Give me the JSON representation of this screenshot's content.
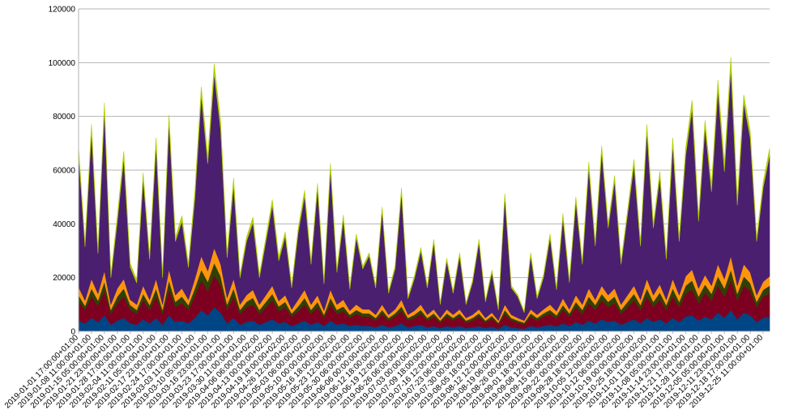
{
  "chart_data": {
    "type": "stacked-area",
    "categories": [
      "2019-01-01 17:00:00+01:00",
      null,
      "2019-01-08 11:00:00+01:00",
      null,
      "2019-01-15 05:00:00+01:00",
      null,
      "2019-01-21 23:00:00+01:00",
      null,
      "2019-01-28 17:00:00+01:00",
      null,
      "2019-02-04 11:00:00+01:00",
      null,
      "2019-02-11 05:00:00+01:00",
      null,
      "2019-02-17 23:00:00+01:00",
      null,
      "2019-02-24 17:00:00+01:00",
      null,
      "2019-03-03 11:00:00+01:00",
      null,
      "2019-03-10 05:00:00+01:00",
      null,
      "2019-03-16 23:00:00+01:00",
      null,
      "2019-03-23 17:00:00+01:00",
      null,
      "2019-03-30 11:00:00+01:00",
      null,
      "2019-04-06 06:00:00+02:00",
      null,
      "2019-04-13 00:00:00+02:00",
      null,
      "2019-04-19 18:00:00+02:00",
      null,
      "2019-04-26 12:00:00+02:00",
      null,
      "2019-05-03 06:00:00+02:00",
      null,
      "2019-05-10 00:00:00+02:00",
      null,
      "2019-05-16 18:00:00+02:00",
      null,
      "2019-05-23 12:00:00+02:00",
      null,
      "2019-05-30 06:00:00+02:00",
      null,
      "2019-06-06 00:00:00+02:00",
      null,
      "2019-06-12 18:00:00+02:00",
      null,
      "2019-06-19 12:00:00+02:00",
      null,
      "2019-06-26 06:00:00+02:00",
      null,
      "2019-07-03 00:00:00+02:00",
      null,
      "2019-07-09 18:00:00+02:00",
      null,
      "2019-07-16 12:00:00+02:00",
      null,
      "2019-07-23 06:00:00+02:00",
      null,
      "2019-07-30 00:00:00+02:00",
      null,
      "2019-08-05 18:00:00+02:00",
      null,
      "2019-08-12 12:00:00+02:00",
      null,
      "2019-08-19 06:00:00+02:00",
      null,
      "2019-08-26 00:00:00+02:00",
      null,
      "2019-09-01 18:00:00+02:00",
      null,
      "2019-09-08 12:00:00+02:00",
      null,
      "2019-09-15 06:00:00+02:00",
      null,
      "2019-09-22 00:00:00+02:00",
      null,
      "2019-09-28 18:00:00+02:00",
      null,
      "2019-10-05 12:00:00+02:00",
      null,
      "2019-10-12 06:00:00+02:00",
      null,
      "2019-10-19 00:00:00+02:00",
      null,
      "2019-10-25 18:00:00+02:00",
      null,
      "2019-11-01 11:00:00+01:00",
      null,
      "2019-11-08 05:00:00+01:00",
      null,
      "2019-11-14 23:00:00+01:00",
      null,
      "2019-11-21 17:00:00+01:00",
      null,
      "2019-11-28 11:00:00+01:00",
      null,
      "2019-12-05 05:00:00+01:00",
      null,
      "2019-12-11 23:00:00+01:00",
      null,
      "2019-12-18 17:00:00+01:00",
      null,
      "2019-12-25 11:00:00+01:00",
      null
    ],
    "series": [
      {
        "color": "#004586",
        "values": [
          4000,
          3000,
          5000,
          3500,
          6000,
          2500,
          4000,
          5000,
          3000,
          2500,
          4500,
          3000,
          5000,
          2500,
          6000,
          3500,
          4000,
          3000,
          5000,
          8000,
          6000,
          9000,
          7000,
          3000,
          5000,
          2500,
          3500,
          4000,
          2500,
          3500,
          4500,
          3000,
          3500,
          2000,
          3000,
          4000,
          2500,
          3500,
          2000,
          4000,
          2500,
          3000,
          2000,
          2500,
          2000,
          2000,
          1500,
          2500,
          1500,
          2000,
          3000,
          1500,
          2000,
          2500,
          1500,
          2000,
          1200,
          2000,
          1500,
          2000,
          1200,
          1500,
          2000,
          1200,
          1800,
          1000,
          2500,
          1500,
          1200,
          1000,
          2000,
          1500,
          2000,
          2500,
          1800,
          3000,
          2000,
          3500,
          2500,
          4000,
          3000,
          4500,
          3500,
          4000,
          2500,
          3500,
          4500,
          3000,
          5000,
          3500,
          4500,
          3000,
          5000,
          3500,
          5500,
          6000,
          4000,
          5500,
          4500,
          7000,
          5000,
          8000,
          4500,
          7000,
          6000,
          3500,
          5000,
          5500
        ]
      },
      {
        "color": "#7e0021",
        "values": [
          7000,
          5000,
          8000,
          6000,
          9000,
          4000,
          6500,
          8000,
          5000,
          4000,
          7000,
          5000,
          8000,
          4000,
          9500,
          5500,
          6500,
          5000,
          8000,
          11000,
          9000,
          12000,
          10000,
          5000,
          8000,
          4000,
          5500,
          6000,
          4000,
          5500,
          7000,
          4500,
          5500,
          3500,
          4500,
          6000,
          4000,
          5500,
          3000,
          6000,
          4000,
          4500,
          3000,
          4000,
          3500,
          3500,
          2500,
          4000,
          2500,
          3500,
          4500,
          2500,
          3000,
          4000,
          2500,
          3500,
          2000,
          3500,
          2500,
          3500,
          2000,
          2500,
          3500,
          2000,
          3000,
          1500,
          4000,
          2500,
          2000,
          1500,
          3500,
          2500,
          3500,
          4000,
          3000,
          5000,
          3500,
          5500,
          4000,
          6500,
          5000,
          7000,
          5500,
          6500,
          4000,
          5500,
          7000,
          5000,
          8000,
          5500,
          7500,
          5000,
          8000,
          5500,
          8500,
          9500,
          6500,
          9000,
          7000,
          10000,
          8000,
          11000,
          7000,
          10000,
          9000,
          5500,
          8000,
          8500
        ]
      },
      {
        "color": "#314004",
        "values": [
          2500,
          1500,
          3000,
          2000,
          3500,
          1500,
          2500,
          3000,
          1800,
          1500,
          2500,
          1800,
          3000,
          1500,
          3500,
          2000,
          2500,
          1800,
          3000,
          4000,
          3500,
          4500,
          3500,
          2000,
          3000,
          1500,
          2000,
          2500,
          1500,
          2000,
          2500,
          1800,
          2000,
          1200,
          1800,
          2500,
          1500,
          2000,
          1200,
          2500,
          1500,
          1800,
          1200,
          1500,
          1200,
          1200,
          1000,
          1500,
          1000,
          1200,
          1800,
          1000,
          1200,
          1500,
          1000,
          1200,
          800,
          1200,
          1000,
          1200,
          800,
          1000,
          1200,
          800,
          1000,
          700,
          1500,
          1000,
          800,
          700,
          1200,
          1000,
          1200,
          1500,
          1200,
          1800,
          1200,
          2000,
          1500,
          2500,
          1800,
          2500,
          2000,
          2500,
          1500,
          2000,
          2500,
          1800,
          3000,
          2000,
          2500,
          1800,
          3000,
          2000,
          3000,
          3500,
          2500,
          3000,
          2500,
          3500,
          3000,
          4000,
          2500,
          3500,
          3000,
          2000,
          2500,
          3000
        ]
      },
      {
        "color": "#ff950e",
        "values": [
          3000,
          2000,
          3500,
          2500,
          4000,
          2000,
          3000,
          3500,
          2000,
          2000,
          3000,
          2000,
          3500,
          2000,
          4000,
          2500,
          3000,
          2000,
          3500,
          5000,
          4000,
          5500,
          4500,
          2500,
          3500,
          2000,
          2500,
          3000,
          2000,
          2500,
          3000,
          2000,
          2500,
          1500,
          2500,
          3000,
          2000,
          2500,
          1500,
          3000,
          2000,
          2500,
          1500,
          2000,
          1500,
          1500,
          1200,
          2000,
          1200,
          1500,
          2500,
          1200,
          1500,
          2000,
          1200,
          1500,
          1000,
          1500,
          1200,
          1500,
          1000,
          1200,
          1500,
          1000,
          1200,
          800,
          2000,
          1200,
          1000,
          800,
          1500,
          1200,
          1500,
          2000,
          1500,
          2500,
          1500,
          2500,
          2000,
          3000,
          2000,
          3000,
          2500,
          3000,
          2000,
          2500,
          3000,
          2000,
          3500,
          2500,
          3000,
          2000,
          3500,
          2500,
          3500,
          4000,
          3000,
          3500,
          3000,
          4500,
          3500,
          5000,
          3000,
          4500,
          4000,
          2500,
          3000,
          3500
        ]
      },
      {
        "color": "#4b1f6f",
        "values": [
          50000,
          20000,
          55000,
          15000,
          60000,
          10000,
          25000,
          45000,
          12000,
          8000,
          40000,
          15000,
          50000,
          10000,
          55000,
          20000,
          25000,
          12000,
          30000,
          60000,
          40000,
          65000,
          50000,
          15000,
          35000,
          10000,
          20000,
          25000,
          10000,
          20000,
          30000,
          15000,
          22000,
          8000,
          25000,
          35000,
          15000,
          40000,
          10000,
          45000,
          12000,
          30000,
          8000,
          25000,
          15000,
          20000,
          10000,
          35000,
          8000,
          15000,
          40000,
          6000,
          12000,
          20000,
          10000,
          25000,
          5000,
          18000,
          8000,
          20000,
          5000,
          12000,
          25000,
          6000,
          15000,
          4000,
          40000,
          10000,
          8000,
          3000,
          20000,
          6000,
          12000,
          25000,
          8000,
          30000,
          10000,
          35000,
          15000,
          45000,
          20000,
          50000,
          25000,
          40000,
          15000,
          30000,
          45000,
          20000,
          55000,
          25000,
          40000,
          15000,
          50000,
          20000,
          45000,
          60000,
          25000,
          55000,
          35000,
          65000,
          40000,
          70000,
          30000,
          60000,
          50000,
          20000,
          35000,
          45000
        ]
      },
      {
        "color": "#aecf00",
        "values": [
          2000,
          1500,
          2500,
          1500,
          2500,
          1200,
          2000,
          2500,
          1500,
          1200,
          2000,
          1500,
          2500,
          1200,
          2500,
          1500,
          2000,
          1500,
          2500,
          3000,
          2500,
          3500,
          3000,
          1500,
          2500,
          1200,
          1500,
          2000,
          1200,
          1500,
          2000,
          1500,
          1500,
          1000,
          1500,
          2000,
          1200,
          1500,
          1000,
          2000,
          1200,
          1500,
          1000,
          1200,
          1000,
          1000,
          800,
          1200,
          800,
          1000,
          1500,
          800,
          1000,
          1200,
          800,
          1000,
          600,
          1000,
          800,
          1000,
          600,
          800,
          1000,
          600,
          800,
          500,
          1200,
          800,
          600,
          500,
          1000,
          800,
          1000,
          1200,
          1000,
          1500,
          1000,
          1500,
          1200,
          2000,
          1500,
          2000,
          1500,
          2000,
          1200,
          1500,
          2000,
          1500,
          2500,
          1500,
          2000,
          1500,
          2500,
          1500,
          2500,
          3000,
          2000,
          2500,
          2500,
          3500,
          3000,
          4000,
          2500,
          3000,
          2500,
          1500,
          2000,
          2500
        ]
      }
    ],
    "ylim": [
      0,
      120000
    ],
    "yticks": [
      0,
      20000,
      40000,
      60000,
      80000,
      100000,
      120000
    ],
    "grid": true
  }
}
